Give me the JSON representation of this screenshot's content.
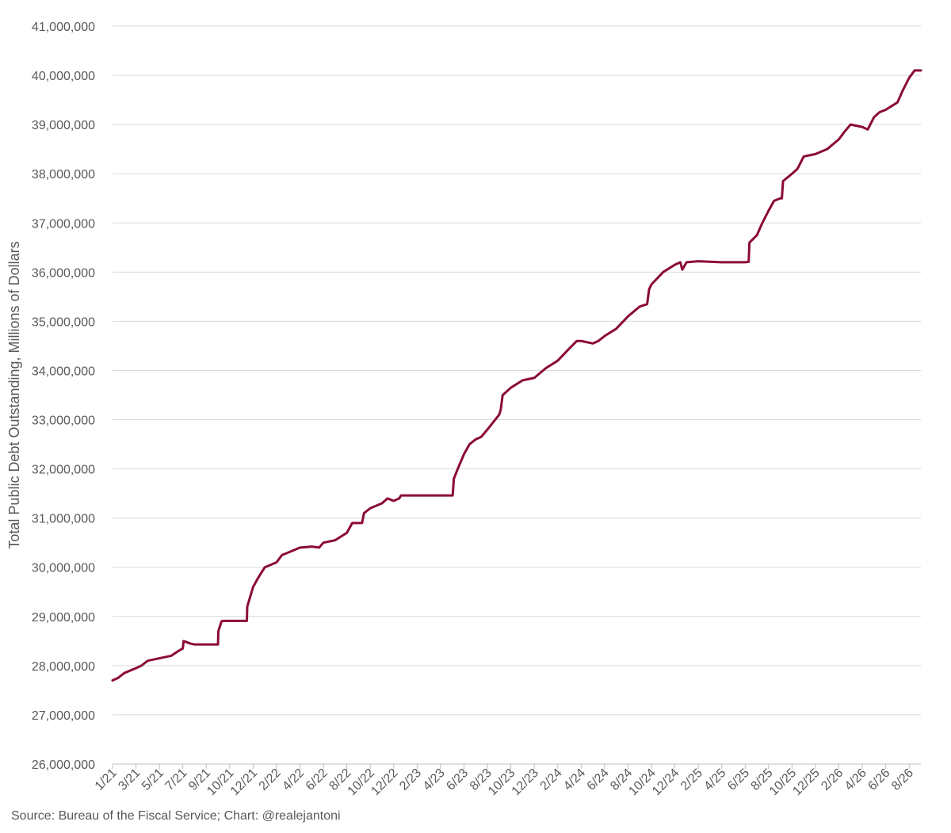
{
  "chart_data": {
    "type": "line",
    "title": "",
    "ylabel": "Total Public Debt Outstanding, Millions of Dollars",
    "xlabel": "",
    "ylim": [
      26000000,
      41000000
    ],
    "yticks": [
      "26,000,000",
      "27,000,000",
      "28,000,000",
      "29,000,000",
      "30,000,000",
      "31,000,000",
      "32,000,000",
      "33,000,000",
      "34,000,000",
      "35,000,000",
      "36,000,000",
      "37,000,000",
      "38,000,000",
      "39,000,000",
      "40,000,000",
      "41,000,000"
    ],
    "yticks_values": [
      26000000,
      27000000,
      28000000,
      29000000,
      30000000,
      31000000,
      32000000,
      33000000,
      34000000,
      35000000,
      36000000,
      37000000,
      38000000,
      39000000,
      40000000,
      41000000
    ],
    "xlim": [
      "2021-01",
      "2026-10"
    ],
    "xticks": [
      {
        "label": "1/21",
        "x": "2021-01"
      },
      {
        "label": "3/21",
        "x": "2021-03"
      },
      {
        "label": "5/21",
        "x": "2021-05"
      },
      {
        "label": "7/21",
        "x": "2021-07"
      },
      {
        "label": "9/21",
        "x": "2021-09"
      },
      {
        "label": "10/21",
        "x": "2021-11"
      },
      {
        "label": "12/21",
        "x": "2022-01"
      },
      {
        "label": "2/22",
        "x": "2022-03"
      },
      {
        "label": "4/22",
        "x": "2022-05"
      },
      {
        "label": "6/22",
        "x": "2022-07"
      },
      {
        "label": "8/22",
        "x": "2022-09"
      },
      {
        "label": "10/22",
        "x": "2022-11"
      },
      {
        "label": "12/22",
        "x": "2023-01"
      },
      {
        "label": "2/23",
        "x": "2023-03"
      },
      {
        "label": "4/23",
        "x": "2023-05"
      },
      {
        "label": "6/23",
        "x": "2023-07"
      },
      {
        "label": "8/23",
        "x": "2023-09"
      },
      {
        "label": "10/23",
        "x": "2023-11"
      },
      {
        "label": "12/23",
        "x": "2024-01"
      },
      {
        "label": "2/24",
        "x": "2024-03"
      },
      {
        "label": "4/24",
        "x": "2024-05"
      },
      {
        "label": "6/24",
        "x": "2024-07"
      },
      {
        "label": "8/24",
        "x": "2024-09"
      },
      {
        "label": "10/24",
        "x": "2024-11"
      },
      {
        "label": "12/24",
        "x": "2025-01"
      },
      {
        "label": "2/25",
        "x": "2025-03"
      },
      {
        "label": "4/25",
        "x": "2025-05"
      },
      {
        "label": "6/25",
        "x": "2025-07"
      },
      {
        "label": "8/25",
        "x": "2025-09"
      },
      {
        "label": "10/25",
        "x": "2025-11"
      },
      {
        "label": "12/25",
        "x": "2026-01"
      },
      {
        "label": "2/26",
        "x": "2026-03"
      },
      {
        "label": "4/26",
        "x": "2026-05"
      },
      {
        "label": "6/26",
        "x": "2026-07"
      },
      {
        "label": "8/26",
        "x": "2026-09"
      }
    ],
    "grid": true,
    "legend": "none",
    "series": [
      {
        "color": "#8B0A3A",
        "points": [
          [
            "2021-01",
            27700000
          ],
          [
            "2021-01-15",
            27750000
          ],
          [
            "2021-02",
            27850000
          ],
          [
            "2021-03",
            27950000
          ],
          [
            "2021-03-15",
            28000000
          ],
          [
            "2021-04",
            28100000
          ],
          [
            "2021-05",
            28150000
          ],
          [
            "2021-06",
            28200000
          ],
          [
            "2021-06-20",
            28300000
          ],
          [
            "2021-07",
            28350000
          ],
          [
            "2021-07-03",
            28500000
          ],
          [
            "2021-07-20",
            28450000
          ],
          [
            "2021-08",
            28430000
          ],
          [
            "2021-09",
            28430000
          ],
          [
            "2021-10",
            28430000
          ],
          [
            "2021-10-01",
            28430000
          ],
          [
            "2021-10-02",
            28700000
          ],
          [
            "2021-10-10",
            28900000
          ],
          [
            "2021-10-15",
            28910000
          ],
          [
            "2021-11",
            28910000
          ],
          [
            "2021-12",
            28910000
          ],
          [
            "2021-12-15",
            28910000
          ],
          [
            "2021-12-16",
            29200000
          ],
          [
            "2022-01",
            29600000
          ],
          [
            "2022-01-15",
            29800000
          ],
          [
            "2022-02",
            30000000
          ],
          [
            "2022-03",
            30100000
          ],
          [
            "2022-03-15",
            30250000
          ],
          [
            "2022-04",
            30300000
          ],
          [
            "2022-05",
            30400000
          ],
          [
            "2022-06",
            30420000
          ],
          [
            "2022-06-20",
            30400000
          ],
          [
            "2022-07",
            30500000
          ],
          [
            "2022-08",
            30550000
          ],
          [
            "2022-09",
            30700000
          ],
          [
            "2022-09-15",
            30900000
          ],
          [
            "2022-10",
            30900000
          ],
          [
            "2022-10-10",
            30900000
          ],
          [
            "2022-10-15",
            31100000
          ],
          [
            "2022-11",
            31200000
          ],
          [
            "2022-12",
            31300000
          ],
          [
            "2022-12-15",
            31400000
          ],
          [
            "2023-01",
            31350000
          ],
          [
            "2023-01-15",
            31400000
          ],
          [
            "2023-01-20",
            31460000
          ],
          [
            "2023-02",
            31460000
          ],
          [
            "2023-03",
            31460000
          ],
          [
            "2023-04",
            31460000
          ],
          [
            "2023-05",
            31460000
          ],
          [
            "2023-06",
            31460000
          ],
          [
            "2023-06-02",
            31460000
          ],
          [
            "2023-06-05",
            31800000
          ],
          [
            "2023-06-15",
            32000000
          ],
          [
            "2023-07",
            32300000
          ],
          [
            "2023-07-15",
            32500000
          ],
          [
            "2023-08",
            32600000
          ],
          [
            "2023-08-15",
            32650000
          ],
          [
            "2023-09",
            32800000
          ],
          [
            "2023-10",
            33100000
          ],
          [
            "2023-10-05",
            33200000
          ],
          [
            "2023-10-10",
            33500000
          ],
          [
            "2023-11",
            33650000
          ],
          [
            "2023-12",
            33800000
          ],
          [
            "2024-01",
            33850000
          ],
          [
            "2024-02",
            34050000
          ],
          [
            "2024-03",
            34200000
          ],
          [
            "2024-04",
            34450000
          ],
          [
            "2024-04-20",
            34600000
          ],
          [
            "2024-05",
            34600000
          ],
          [
            "2024-06",
            34550000
          ],
          [
            "2024-06-15",
            34600000
          ],
          [
            "2024-07",
            34700000
          ],
          [
            "2024-08",
            34850000
          ],
          [
            "2024-09",
            35100000
          ],
          [
            "2024-10",
            35300000
          ],
          [
            "2024-10-20",
            35350000
          ],
          [
            "2024-10-25",
            35650000
          ],
          [
            "2024-11",
            35750000
          ],
          [
            "2024-12",
            36000000
          ],
          [
            "2025-01",
            36150000
          ],
          [
            "2025-01-15",
            36200000
          ],
          [
            "2025-01-20",
            36050000
          ],
          [
            "2025-02",
            36200000
          ],
          [
            "2025-03",
            36220000
          ],
          [
            "2025-04",
            36210000
          ],
          [
            "2025-05",
            36200000
          ],
          [
            "2025-06",
            36200000
          ],
          [
            "2025-07",
            36200000
          ],
          [
            "2025-07-10",
            36210000
          ],
          [
            "2025-07-12",
            36600000
          ],
          [
            "2025-08",
            36750000
          ],
          [
            "2025-08-15",
            37000000
          ],
          [
            "2025-09",
            37250000
          ],
          [
            "2025-09-15",
            37450000
          ],
          [
            "2025-10",
            37500000
          ],
          [
            "2025-10-05",
            37500000
          ],
          [
            "2025-10-08",
            37850000
          ],
          [
            "2025-11",
            38000000
          ],
          [
            "2025-11-15",
            38100000
          ],
          [
            "2025-12",
            38350000
          ],
          [
            "2026-01",
            38400000
          ],
          [
            "2026-02",
            38500000
          ],
          [
            "2026-03",
            38700000
          ],
          [
            "2026-03-15",
            38850000
          ],
          [
            "2026-04",
            39000000
          ],
          [
            "2026-05",
            38950000
          ],
          [
            "2026-05-15",
            38900000
          ],
          [
            "2026-06",
            39150000
          ],
          [
            "2026-06-15",
            39250000
          ],
          [
            "2026-07",
            39300000
          ],
          [
            "2026-08",
            39450000
          ],
          [
            "2026-08-15",
            39700000
          ],
          [
            "2026-09",
            39950000
          ],
          [
            "2026-09-15",
            40100000
          ],
          [
            "2026-10",
            40100000
          ]
        ]
      }
    ]
  },
  "footer": {
    "source": "Source: Bureau of the Fiscal Service; Chart: @realejantoni"
  }
}
